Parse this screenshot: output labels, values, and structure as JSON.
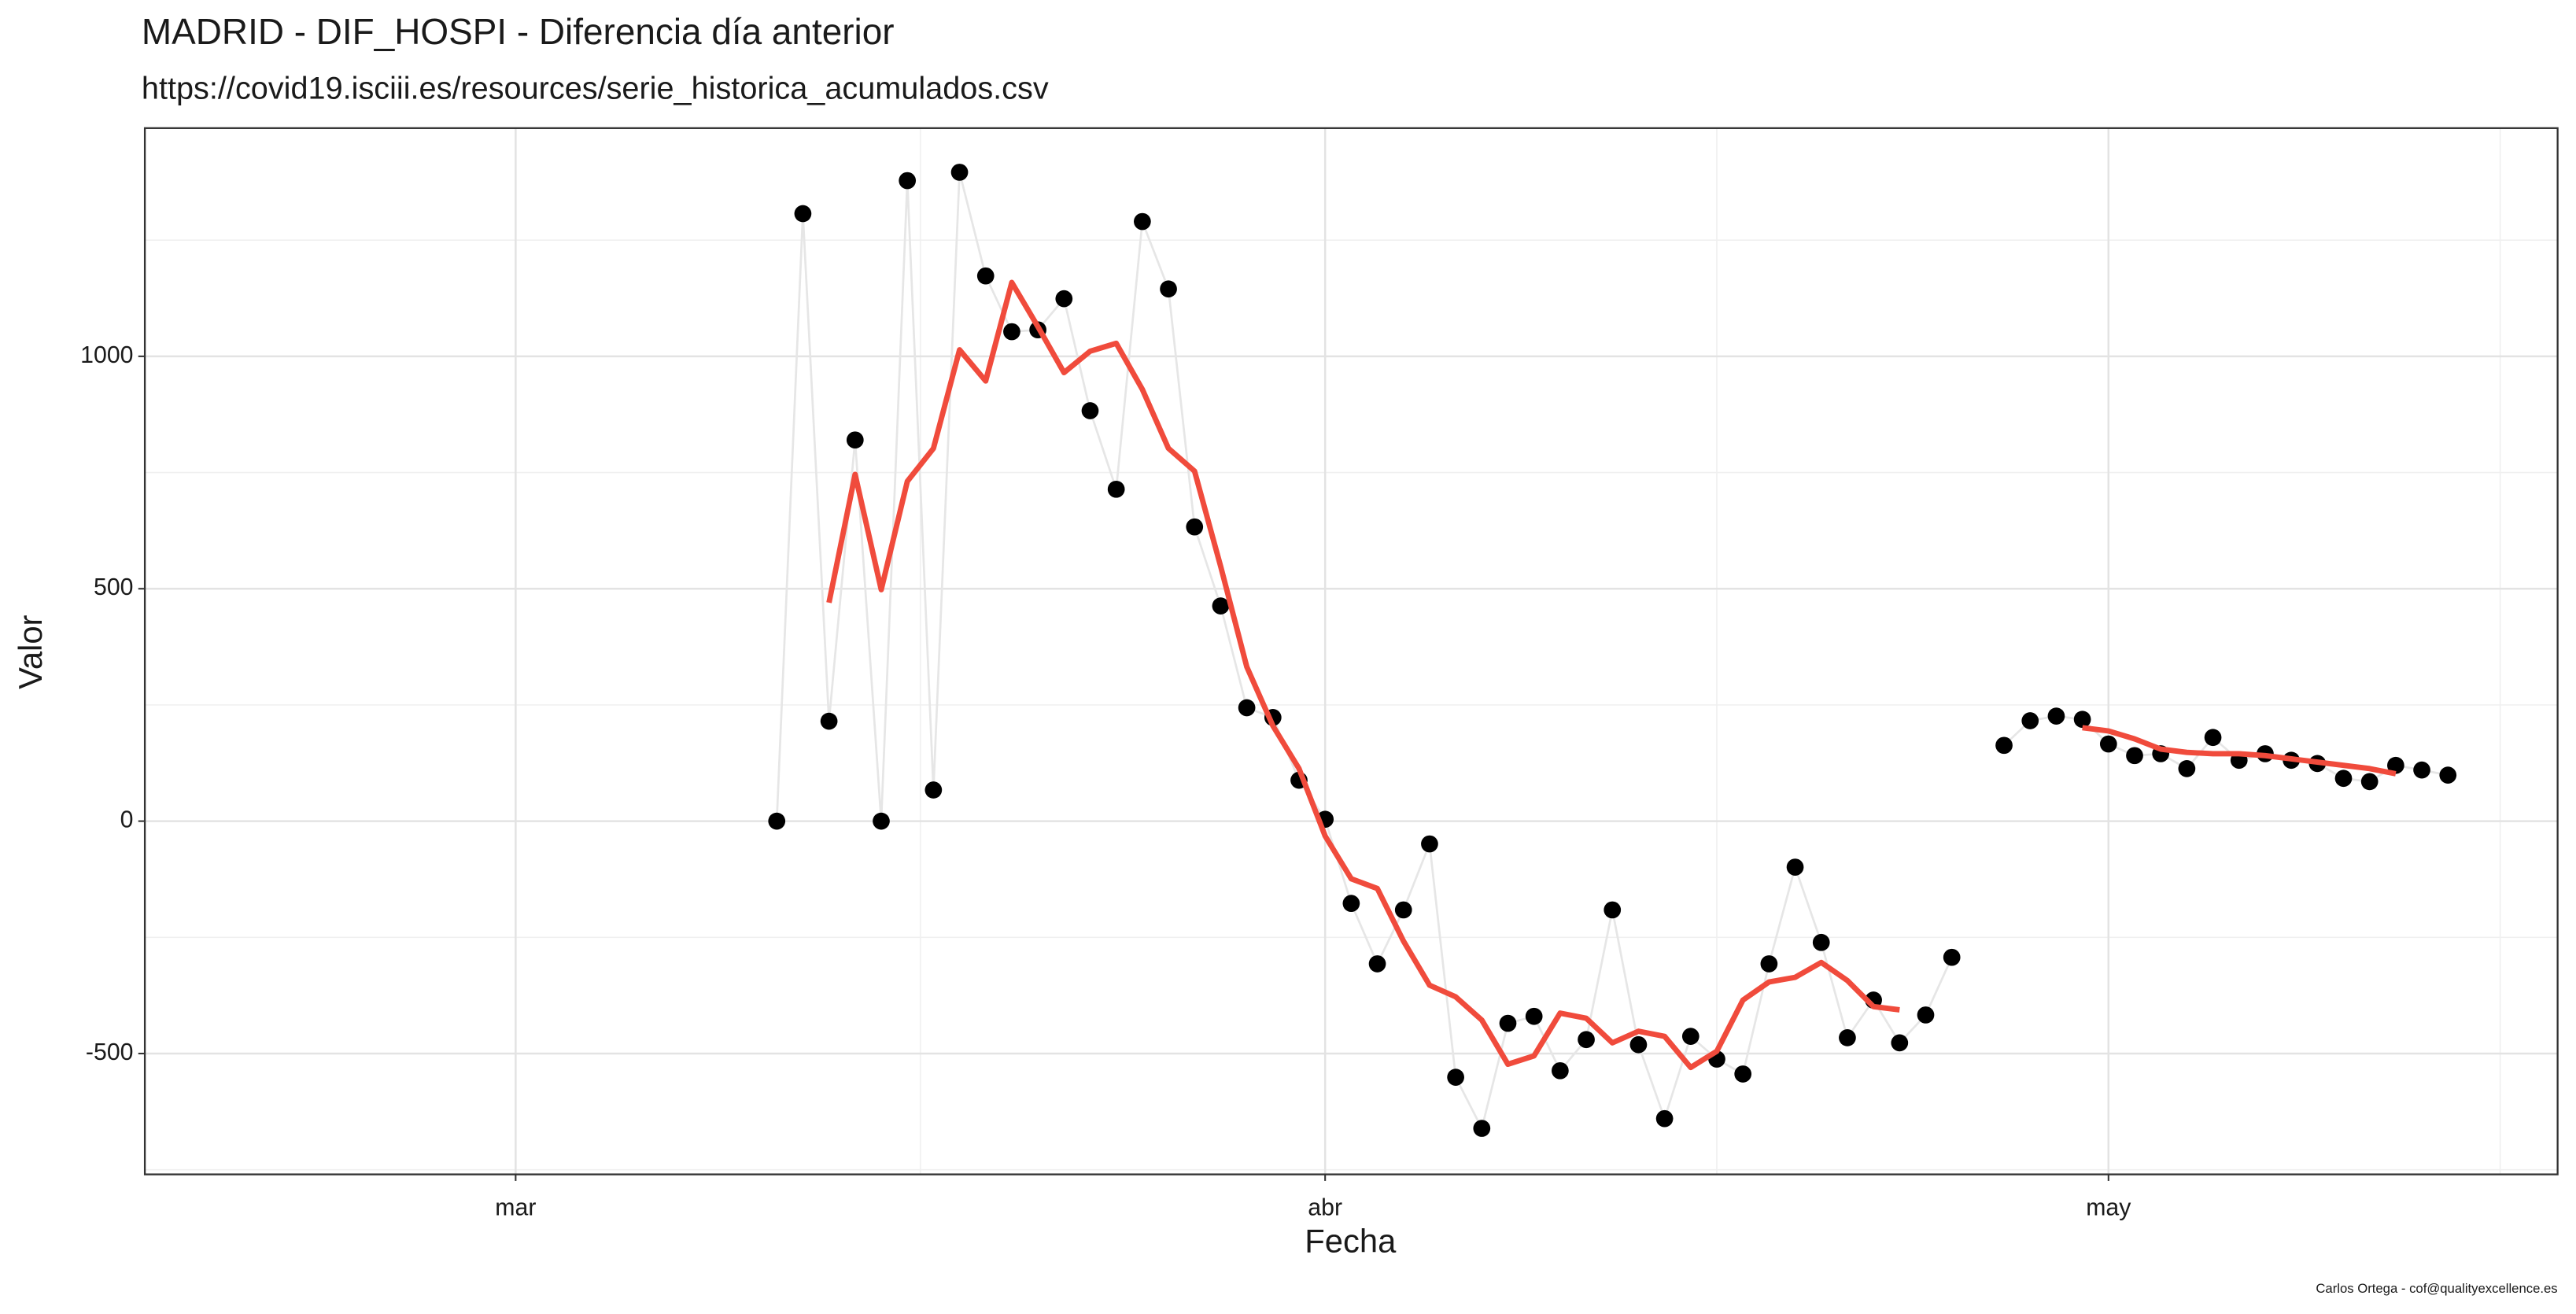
{
  "chart_data": {
    "type": "line",
    "title": "MADRID - DIF_HOSPI - Diferencia día anterior",
    "subtitle": "https://covid19.isciii.es/resources/serie_historica_acumulados.csv",
    "x_label": "Fecha",
    "y_label": "Valor",
    "caption": "Carlos Ortega - cof@qualityexcellence.es",
    "x": [
      11,
      12,
      13,
      14,
      15,
      16,
      17,
      18,
      19,
      20,
      21,
      22,
      23,
      24,
      25,
      26,
      27,
      28,
      29,
      30,
      31,
      32,
      33,
      34,
      35,
      36,
      37,
      38,
      39,
      40,
      41,
      42,
      43,
      44,
      45,
      46,
      47,
      48,
      49,
      50,
      51,
      52,
      53,
      54,
      55,
      56,
      57,
      58,
      59,
      60,
      61,
      62,
      63,
      64,
      65,
      66,
      67,
      68,
      69,
      70,
      71,
      72,
      73,
      74,
      75
    ],
    "series": [
      {
        "color": "#000000",
        "line_color": "#e6e6e6",
        "points": true,
        "values": [
          0,
          1307,
          215,
          820,
          0,
          1378,
          67,
          1396,
          1173,
          1053,
          1057,
          1124,
          883,
          714,
          1290,
          1145,
          633,
          463,
          244,
          223,
          88,
          4,
          -177,
          -307,
          -191,
          -49,
          -551,
          -661,
          -435,
          -420,
          -537,
          -470,
          -191,
          -481,
          -640,
          -463,
          -512,
          -544,
          -307,
          -99,
          -261,
          -466,
          -385,
          -477,
          -417,
          -293,
          null,
          163,
          216,
          226,
          219,
          166,
          141,
          145,
          113,
          180,
          131,
          145,
          131,
          124,
          92,
          85,
          120,
          110,
          99
        ]
      },
      {
        "color": "#f04b3c",
        "line_color": "#f04b3c",
        "points": false,
        "values": [
          null,
          null,
          470,
          746,
          498,
          731,
          802,
          1014,
          947,
          1159,
          1064,
          965,
          1011,
          1028,
          929,
          802,
          753,
          548,
          332,
          205,
          113,
          -32,
          -124,
          -145,
          -258,
          -353,
          -378,
          -428,
          -523,
          -505,
          -413,
          -424,
          -477,
          -452,
          -463,
          -530,
          -495,
          -385,
          -346,
          -336,
          -304,
          -343,
          -399,
          -406,
          null,
          null,
          null,
          null,
          null,
          null,
          201,
          194,
          177,
          155,
          148,
          145,
          145,
          141,
          134,
          127,
          120,
          113,
          102,
          null,
          null
        ]
      }
    ],
    "xlim": [
      -13.2,
      79.2
    ],
    "xticks": [
      {
        "value": 1,
        "label": "mar"
      },
      {
        "value": 32,
        "label": "abr"
      },
      {
        "value": 62,
        "label": "may"
      }
    ],
    "ylim": [
      -760,
      1491
    ],
    "yticks": [
      -500,
      0,
      500,
      1000
    ],
    "grid": true,
    "minor_grid": true
  }
}
